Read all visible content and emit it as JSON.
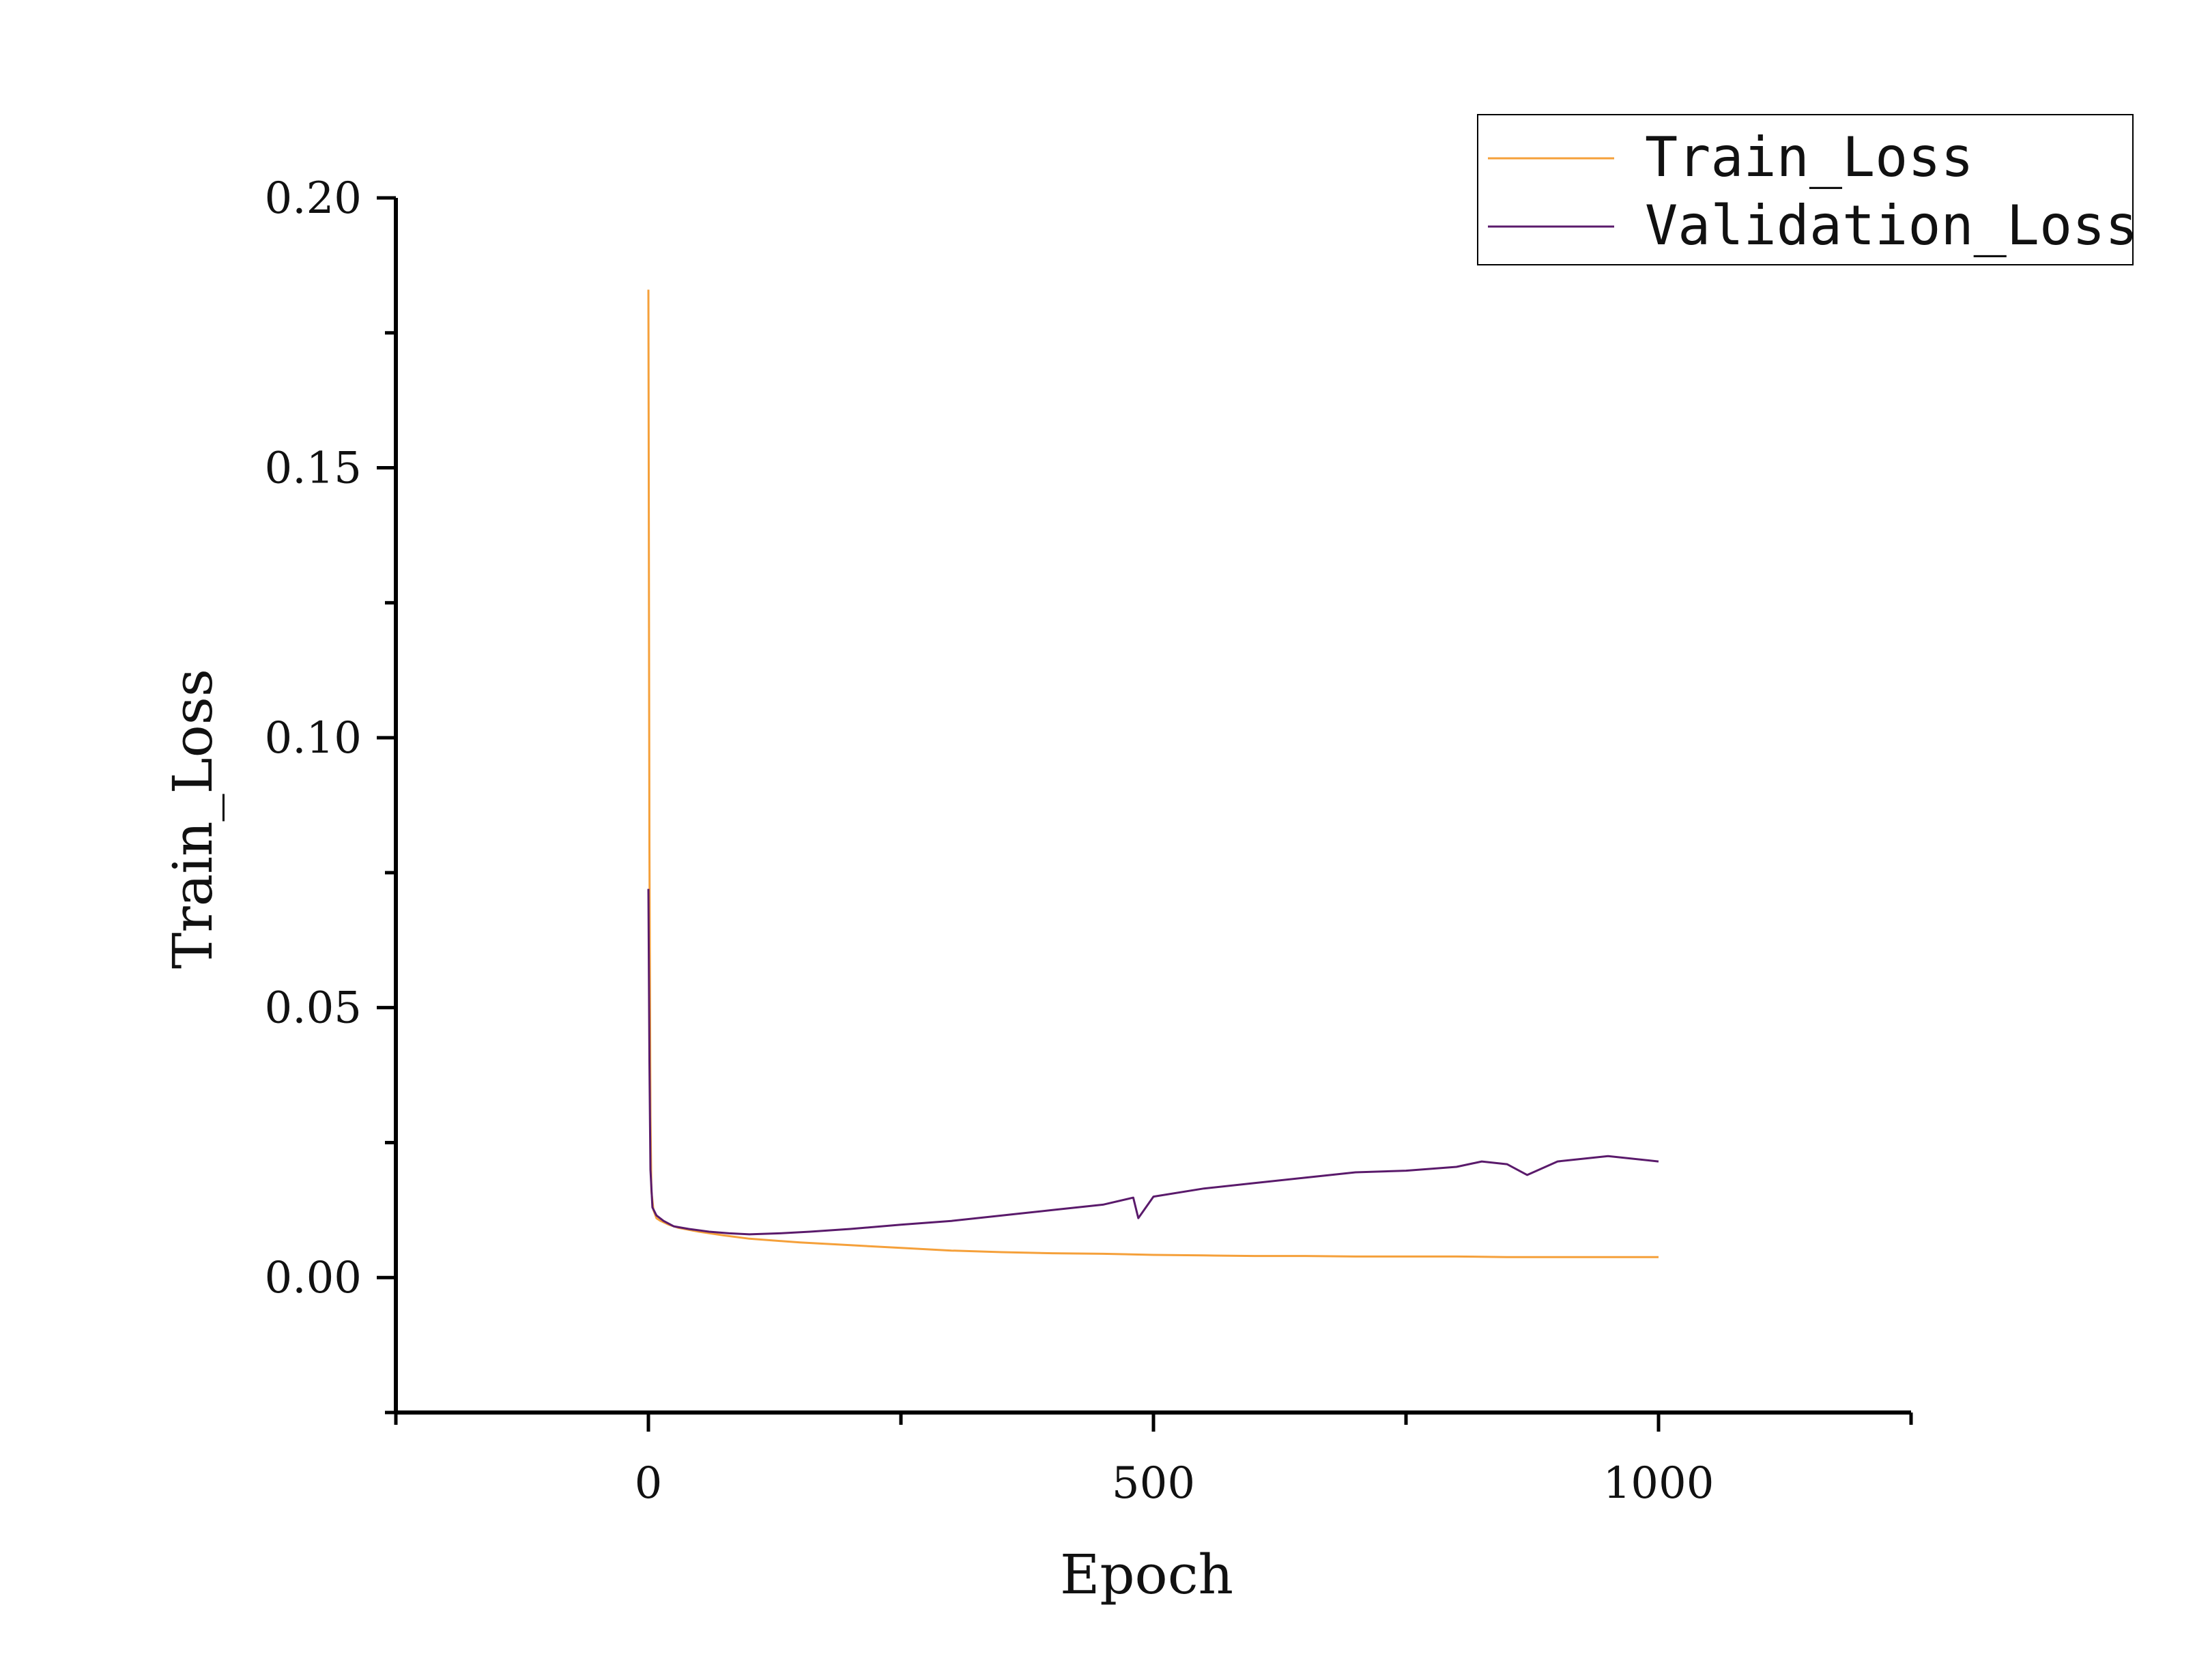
{
  "chart_data": {
    "type": "line",
    "title": "",
    "xlabel": "Epoch",
    "ylabel": "Train_Loss",
    "xlim": [
      -250,
      1250
    ],
    "ylim": [
      -0.025,
      0.2
    ],
    "xticks": [
      0,
      500,
      1000
    ],
    "xtick_labels": [
      "0",
      "500",
      "1000"
    ],
    "yticks": [
      0.0,
      0.05,
      0.1,
      0.15,
      0.2
    ],
    "ytick_labels": [
      "0.00",
      "0.05",
      "0.10",
      "0.15",
      "0.20"
    ],
    "grid": false,
    "legend_position": "top-right",
    "series": [
      {
        "name": "Train_Loss",
        "color": "#f5a03a",
        "x": [
          0,
          1,
          2,
          3,
          5,
          8,
          12,
          20,
          30,
          50,
          75,
          100,
          150,
          200,
          250,
          300,
          350,
          400,
          450,
          500,
          550,
          600,
          650,
          700,
          750,
          800,
          850,
          900,
          950,
          1000
        ],
        "y": [
          0.183,
          0.08,
          0.03,
          0.016,
          0.0125,
          0.011,
          0.0105,
          0.0098,
          0.0092,
          0.0085,
          0.0078,
          0.0072,
          0.0065,
          0.006,
          0.0055,
          0.005,
          0.0047,
          0.0045,
          0.0044,
          0.0042,
          0.0041,
          0.004,
          0.004,
          0.0039,
          0.0039,
          0.0039,
          0.0038,
          0.0038,
          0.0038,
          0.0038
        ]
      },
      {
        "name": "Validation_Loss",
        "color": "#5a1a6b",
        "x": [
          0,
          1,
          2,
          4,
          8,
          15,
          25,
          40,
          60,
          80,
          100,
          130,
          160,
          200,
          250,
          300,
          350,
          400,
          450,
          480,
          485,
          500,
          550,
          600,
          650,
          700,
          750,
          800,
          825,
          850,
          870,
          900,
          950,
          1000
        ],
        "y": [
          0.072,
          0.04,
          0.02,
          0.013,
          0.0115,
          0.0105,
          0.0095,
          0.009,
          0.0085,
          0.0082,
          0.008,
          0.0082,
          0.0085,
          0.009,
          0.0098,
          0.0105,
          0.0115,
          0.0125,
          0.0135,
          0.0148,
          0.011,
          0.015,
          0.0165,
          0.0175,
          0.0185,
          0.0195,
          0.0198,
          0.0205,
          0.0215,
          0.021,
          0.019,
          0.0215,
          0.0225,
          0.0215
        ]
      }
    ]
  }
}
